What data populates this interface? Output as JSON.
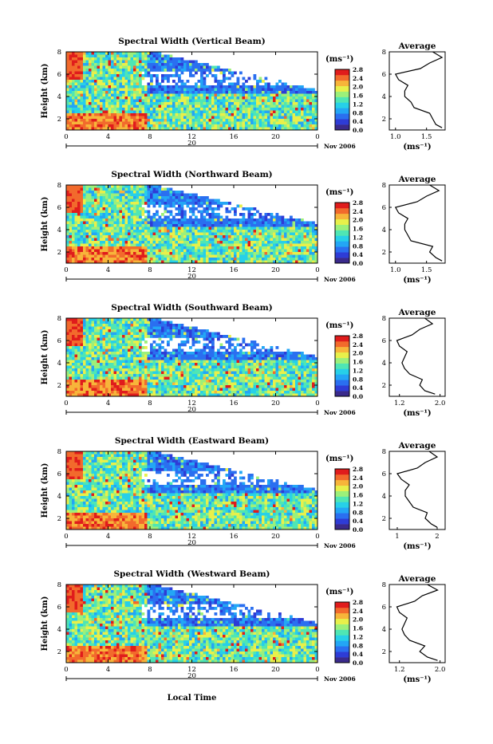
{
  "figure": {
    "xlabel_bottom": "Local Time",
    "date_label": "Nov 2006",
    "day_label": "20",
    "heatmap_xticks": [
      "0",
      "4",
      "8",
      "12",
      "16",
      "20",
      "0"
    ],
    "heatmap_yticks": [
      "2",
      "4",
      "6",
      "8"
    ],
    "heatmap_ylabel": "Height (km)",
    "colorbar_unit": "(ms⁻¹)",
    "colorbar_ticks": [
      "0.0",
      "0.4",
      "0.8",
      "1.2",
      "1.6",
      "2.0",
      "2.4",
      "2.8"
    ],
    "profile_title": "Average",
    "profile_xlabel": "(ms⁻¹)",
    "colors": {
      "colorbar": [
        "#3a2a8c",
        "#2e3cd6",
        "#2a6ff0",
        "#23a6f5",
        "#27d0e8",
        "#4fe6b4",
        "#9cf07a",
        "#e8f04a",
        "#f7b53a",
        "#f26a2c",
        "#e01c1c"
      ]
    }
  },
  "chart_data": [
    {
      "type": "heatmap",
      "title": "Spectral Width (Vertical Beam)",
      "xlabel": "Local Time",
      "ylabel": "Height (km)",
      "xlim": [
        0,
        24
      ],
      "ylim": [
        1,
        8
      ],
      "colorbar_range": [
        0.0,
        2.8
      ],
      "colorbar_unit": "(ms⁻¹)",
      "profile": {
        "title": "Average",
        "xlabel": "(ms⁻¹)",
        "xticks": [
          "1.0",
          "1.5"
        ],
        "xlim": [
          0.9,
          1.8
        ],
        "yticks": [
          "2",
          "4",
          "6",
          "8"
        ],
        "height_km": [
          1.2,
          1.5,
          2.0,
          2.5,
          3.0,
          3.5,
          4.0,
          4.5,
          5.0,
          5.5,
          6.0,
          6.5,
          7.0,
          7.5,
          8.0
        ],
        "values": [
          1.75,
          1.65,
          1.6,
          1.55,
          1.3,
          1.25,
          1.15,
          1.15,
          1.2,
          1.05,
          1.0,
          1.4,
          1.55,
          1.75,
          1.6
        ]
      }
    },
    {
      "type": "heatmap",
      "title": "Spectral Width (Northward Beam)",
      "xlabel": "Local Time",
      "ylabel": "Height (km)",
      "xlim": [
        0,
        24
      ],
      "ylim": [
        1,
        8
      ],
      "colorbar_range": [
        0.0,
        2.8
      ],
      "colorbar_unit": "(ms⁻¹)",
      "profile": {
        "title": "Average",
        "xlabel": "(ms⁻¹)",
        "xticks": [
          "1.0",
          "1.5"
        ],
        "xlim": [
          0.9,
          1.8
        ],
        "yticks": [
          "2",
          "4",
          "6",
          "8"
        ],
        "height_km": [
          1.2,
          1.5,
          2.0,
          2.5,
          3.0,
          3.5,
          4.0,
          4.5,
          5.0,
          5.5,
          6.0,
          6.5,
          7.0,
          7.5,
          8.0
        ],
        "values": [
          1.75,
          1.65,
          1.55,
          1.6,
          1.25,
          1.2,
          1.15,
          1.15,
          1.2,
          1.05,
          1.0,
          1.35,
          1.5,
          1.7,
          1.55
        ]
      }
    },
    {
      "type": "heatmap",
      "title": "Spectral Width (Southward Beam)",
      "xlabel": "Local Time",
      "ylabel": "Height (km)",
      "xlim": [
        0,
        24
      ],
      "ylim": [
        1,
        8
      ],
      "colorbar_range": [
        0.0,
        2.8
      ],
      "colorbar_unit": "(ms⁻¹)",
      "profile": {
        "title": "Average",
        "xlabel": "(ms⁻¹)",
        "xticks": [
          "1.2",
          "2.0"
        ],
        "xlim": [
          1.0,
          2.1
        ],
        "yticks": [
          "2",
          "4",
          "6",
          "8"
        ],
        "height_km": [
          1.2,
          1.5,
          2.0,
          2.5,
          3.0,
          3.5,
          4.0,
          4.5,
          5.0,
          5.5,
          6.0,
          6.5,
          7.0,
          7.5,
          8.0
        ],
        "values": [
          1.9,
          1.7,
          1.6,
          1.65,
          1.4,
          1.3,
          1.25,
          1.3,
          1.35,
          1.2,
          1.15,
          1.45,
          1.6,
          1.85,
          1.7
        ]
      }
    },
    {
      "type": "heatmap",
      "title": "Spectral Width (Eastward Beam)",
      "xlabel": "Local Time",
      "ylabel": "Height (km)",
      "xlim": [
        0,
        24
      ],
      "ylim": [
        1,
        8
      ],
      "colorbar_range": [
        0.0,
        2.8
      ],
      "colorbar_unit": "(ms⁻¹)",
      "profile": {
        "title": "Average",
        "xlabel": "(ms⁻¹)",
        "xticks": [
          "1",
          "2"
        ],
        "xlim": [
          0.8,
          2.2
        ],
        "yticks": [
          "2",
          "4",
          "6",
          "8"
        ],
        "height_km": [
          1.2,
          1.5,
          2.0,
          2.5,
          3.0,
          3.5,
          4.0,
          4.5,
          5.0,
          5.5,
          6.0,
          6.5,
          7.0,
          7.5,
          8.0
        ],
        "values": [
          2.0,
          1.85,
          1.7,
          1.75,
          1.4,
          1.3,
          1.2,
          1.2,
          1.3,
          1.1,
          1.0,
          1.5,
          1.7,
          2.0,
          1.8
        ]
      }
    },
    {
      "type": "heatmap",
      "title": "Spectral Width (Westward Beam)",
      "xlabel": "Local Time",
      "ylabel": "Height (km)",
      "xlim": [
        0,
        24
      ],
      "ylim": [
        1,
        8
      ],
      "colorbar_range": [
        0.0,
        2.8
      ],
      "colorbar_unit": "(ms⁻¹)",
      "profile": {
        "title": "Average",
        "xlabel": "(ms⁻¹)",
        "xticks": [
          "1.2",
          "2.0"
        ],
        "xlim": [
          1.0,
          2.1
        ],
        "yticks": [
          "2",
          "4",
          "6",
          "8"
        ],
        "height_km": [
          1.2,
          1.5,
          2.0,
          2.5,
          3.0,
          3.5,
          4.0,
          4.5,
          5.0,
          5.5,
          6.0,
          6.5,
          7.0,
          7.5,
          8.0
        ],
        "values": [
          1.95,
          1.75,
          1.6,
          1.7,
          1.4,
          1.3,
          1.25,
          1.3,
          1.35,
          1.2,
          1.15,
          1.5,
          1.65,
          1.95,
          1.75
        ]
      }
    }
  ]
}
